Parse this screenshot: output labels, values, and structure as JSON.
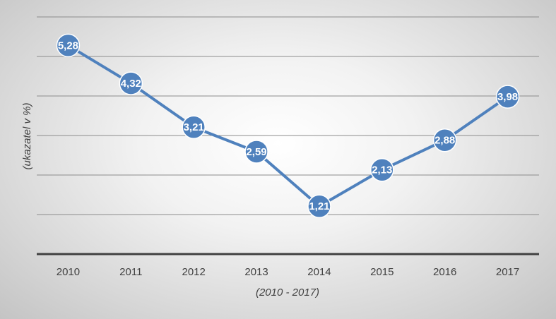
{
  "chart_data": {
    "type": "line",
    "categories": [
      "2010",
      "2011",
      "2012",
      "2013",
      "2014",
      "2015",
      "2016",
      "2017"
    ],
    "series": [
      {
        "values": [
          5.28,
          4.32,
          3.21,
          2.59,
          1.21,
          2.13,
          2.88,
          3.98
        ],
        "labels": [
          "5,28",
          "4,32",
          "3,21",
          "2,59",
          "1,21",
          "2,13",
          "2,88",
          "3,98"
        ]
      }
    ],
    "title": "",
    "xlabel": "(2010 - 2017)",
    "ylabel": "(ukazatel v %)",
    "ylim": [
      0,
      6
    ],
    "y_tick_labels_shown": false,
    "grid": true,
    "colors": {
      "line": "#4f81bd",
      "marker": "#4f81bd",
      "marker_border": "#ffffff",
      "gridline": "#8c8c8c",
      "axis": "#404040",
      "label_text": "#ffffff"
    }
  }
}
